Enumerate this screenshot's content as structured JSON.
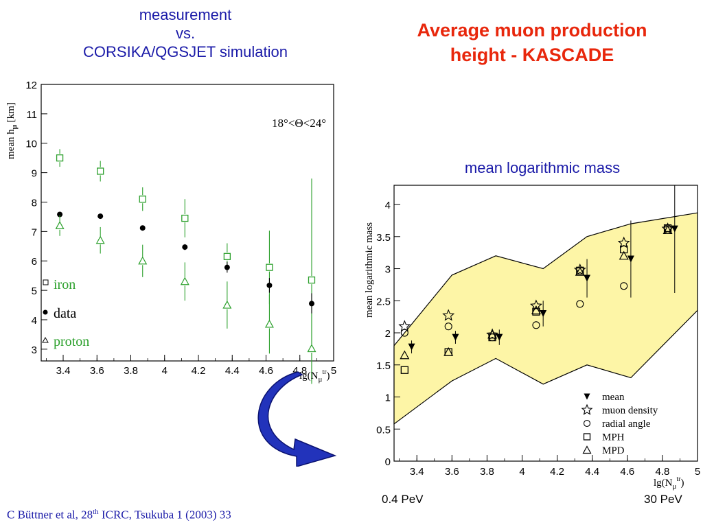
{
  "slide": {
    "left_title_lines": [
      "measurement",
      "vs.",
      "CORSIKA/QGSJET simulation"
    ],
    "right_title_lines": [
      "Average muon production",
      "height - KASCADE"
    ],
    "mlm_title": "mean logarithmic mass",
    "energy_low": "0.4 PeV",
    "energy_high": "30 PeV",
    "citation_pre": "C Büttner et al, 28",
    "citation_sup": "th",
    "citation_post": " ICRC, Tsukuba 1 (2003) 33",
    "colors": {
      "blue_text": "#1a1aa8",
      "red_title": "#e8270c",
      "green": "#2ca02c",
      "band": "#fdf5a6",
      "arrow": "#2233bb"
    }
  },
  "chart_data": [
    {
      "type": "scatter",
      "xlabel_main": "lg(N",
      "xlabel_sub": "μ",
      "xlabel_sup": "tr",
      "ylabel": "mean h",
      "ylabel_sub": "μ",
      "ylabel_unit": " [km]",
      "annotation": "18°<Θ<24°",
      "xlim": [
        3.27,
        5.0
      ],
      "ylim": [
        2.6,
        12.0
      ],
      "xticks": [
        "3.4",
        "3.6",
        "3.8",
        "4",
        "4.2",
        "4.4",
        "4.6",
        "4.8",
        "5"
      ],
      "xtick_values": [
        3.4,
        3.6,
        3.8,
        4.0,
        4.2,
        4.4,
        4.6,
        4.8,
        5.0
      ],
      "yticks": [
        "3",
        "4",
        "5",
        "6",
        "7",
        "8",
        "9",
        "10",
        "11",
        "12"
      ],
      "ytick_values": [
        3,
        4,
        5,
        6,
        7,
        8,
        9,
        10,
        11,
        12
      ],
      "legend": [
        "iron",
        "data",
        "proton"
      ],
      "legend_position": "bottom-left",
      "series": [
        {
          "name": "iron",
          "marker": "square-open",
          "color": "#2ca02c",
          "x": [
            3.38,
            3.62,
            3.87,
            4.12,
            4.37,
            4.62,
            4.87
          ],
          "y": [
            9.5,
            9.05,
            8.1,
            7.45,
            6.15,
            5.78,
            5.35
          ],
          "err": [
            0.3,
            0.35,
            0.4,
            0.65,
            0.45,
            1.25,
            3.45
          ]
        },
        {
          "name": "data",
          "marker": "circle-filled",
          "color": "#000000",
          "x": [
            3.38,
            3.62,
            3.87,
            4.12,
            4.37,
            4.62,
            4.87
          ],
          "y": [
            7.58,
            7.52,
            7.12,
            6.47,
            5.78,
            5.17,
            4.55
          ],
          "err": [
            0.05,
            0.05,
            0.08,
            0.1,
            0.18,
            0.25,
            0.35
          ]
        },
        {
          "name": "proton",
          "marker": "triangle-open",
          "color": "#2ca02c",
          "x": [
            3.38,
            3.62,
            3.87,
            4.12,
            4.37,
            4.62,
            4.87
          ],
          "y": [
            7.2,
            6.7,
            6.0,
            5.3,
            4.5,
            3.85,
            3.02
          ],
          "err": [
            0.35,
            0.45,
            0.55,
            0.65,
            0.8,
            1.0,
            1.2
          ]
        }
      ]
    },
    {
      "type": "scatter",
      "xlabel_main": "lg(N",
      "xlabel_sub": "μ",
      "xlabel_sup": "tr",
      "ylabel": "mean logarithmic mass",
      "xlim": [
        3.27,
        5.0
      ],
      "ylim": [
        0,
        4.3
      ],
      "xticks": [
        "3.4",
        "3.6",
        "3.8",
        "4",
        "4.2",
        "4.4",
        "4.6",
        "4.8",
        "5"
      ],
      "xtick_values": [
        3.4,
        3.6,
        3.8,
        4.0,
        4.2,
        4.4,
        4.6,
        4.8,
        5.0
      ],
      "yticks": [
        "0",
        "0.5",
        "1",
        "1.5",
        "2",
        "2.5",
        "3",
        "3.5",
        "4"
      ],
      "ytick_values": [
        0,
        0.5,
        1,
        1.5,
        2,
        2.5,
        3,
        3.5,
        4
      ],
      "legend": [
        "mean",
        "muon density",
        "radial angle",
        "MPH",
        "MPD"
      ],
      "legend_position": "bottom-right",
      "band_upper": {
        "x": [
          3.27,
          3.6,
          3.85,
          4.12,
          4.37,
          4.62,
          5.0
        ],
        "y": [
          1.8,
          2.9,
          3.2,
          3.0,
          3.5,
          3.7,
          3.87
        ]
      },
      "band_lower": {
        "x": [
          3.27,
          3.6,
          3.85,
          4.12,
          4.37,
          4.62,
          5.0
        ],
        "y": [
          0.58,
          1.25,
          1.6,
          1.2,
          1.5,
          1.3,
          2.35
        ]
      },
      "series": [
        {
          "name": "mean",
          "marker": "triangle-down-filled",
          "x": [
            3.37,
            3.62,
            3.87,
            4.12,
            4.37,
            4.62,
            4.87
          ],
          "y": [
            1.78,
            1.93,
            1.93,
            2.3,
            2.85,
            3.15,
            3.62
          ],
          "err": [
            0.1,
            0.1,
            0.12,
            0.2,
            0.3,
            0.6,
            1.0
          ]
        },
        {
          "name": "muon density",
          "marker": "star-open",
          "x": [
            3.33,
            3.58,
            3.83,
            4.08,
            4.33,
            4.58,
            4.83
          ],
          "y": [
            2.1,
            2.27,
            1.97,
            2.42,
            2.98,
            3.4,
            3.62
          ]
        },
        {
          "name": "radial angle",
          "marker": "circle-open",
          "x": [
            3.33,
            3.58,
            3.83,
            4.08,
            4.33,
            4.58,
            4.83
          ],
          "y": [
            2.0,
            2.1,
            1.93,
            2.12,
            2.45,
            2.73,
            3.63
          ]
        },
        {
          "name": "MPH",
          "marker": "square-open",
          "x": [
            3.33,
            3.58,
            3.83,
            4.08,
            4.33,
            4.58,
            4.83
          ],
          "y": [
            1.42,
            1.7,
            1.93,
            2.33,
            2.97,
            3.3,
            3.63
          ]
        },
        {
          "name": "MPD",
          "marker": "triangle-open",
          "x": [
            3.33,
            3.58,
            3.83,
            4.08,
            4.33,
            4.58,
            4.83
          ],
          "y": [
            1.65,
            1.7,
            1.97,
            2.35,
            2.95,
            3.2,
            3.6
          ]
        }
      ]
    }
  ]
}
